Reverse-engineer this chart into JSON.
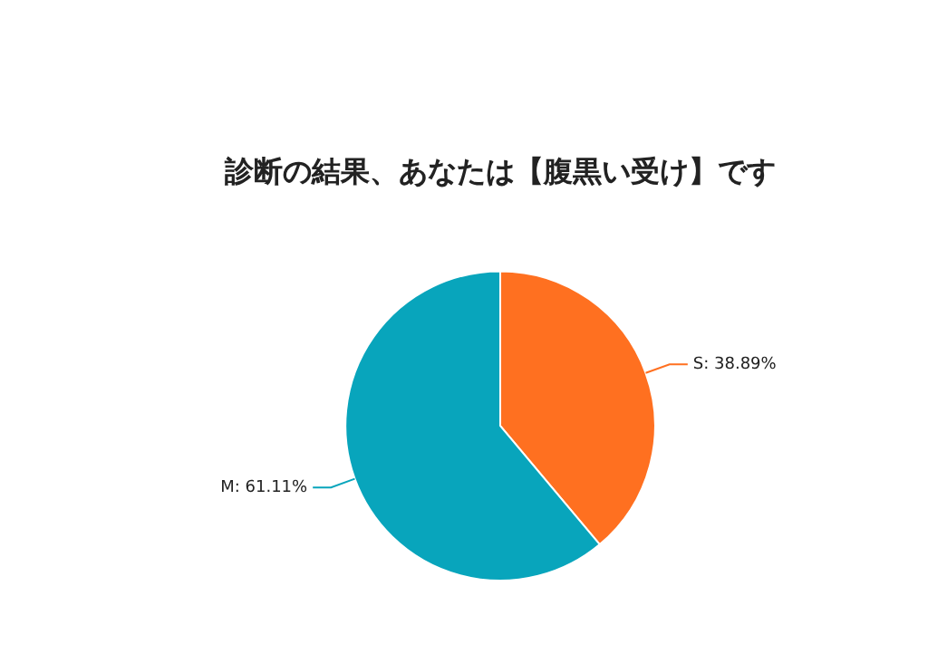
{
  "chart_data": {
    "type": "pie",
    "title": "診断の結果、あなたは【腹黒い受け】です",
    "categories": [
      "S",
      "M"
    ],
    "values": [
      38.89,
      61.11
    ],
    "value_labels": [
      "38.89%",
      "61.11%"
    ],
    "colors": [
      "#ff7020",
      "#08a5bc"
    ],
    "legend": false
  }
}
